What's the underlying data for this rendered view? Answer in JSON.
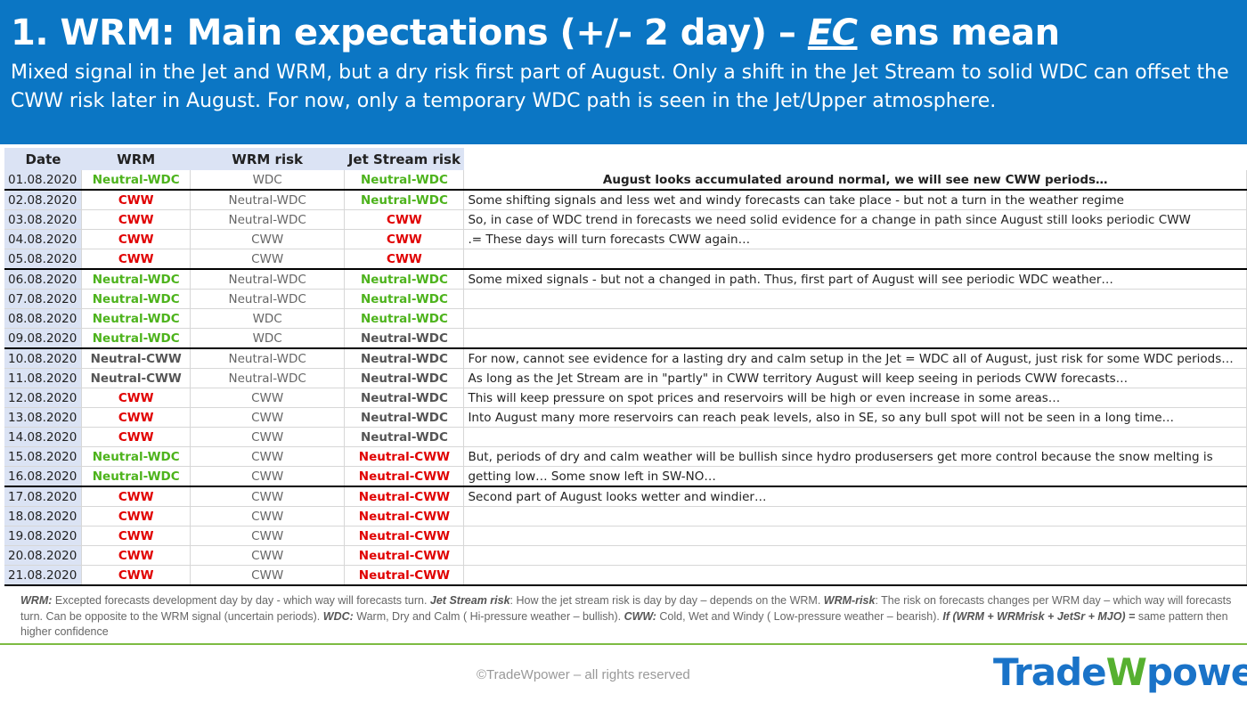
{
  "header": {
    "title_main": "1. WRM: Main expectations (+/- 2 day) – ",
    "title_ec": "EC",
    "title_rest": " ens mean",
    "subtitle": "Mixed signal in the Jet and WRM, but a dry risk first part of August. Only a shift in the Jet Stream to solid WDC can offset the CWW risk later in August. For now, only a temporary WDC path is seen in the Jet/Upper atmosphere."
  },
  "table": {
    "columns": [
      "Date",
      "WRM",
      "WRM risk",
      "Jet Stream risk"
    ],
    "rows": [
      {
        "date": "01.08.2020",
        "wrm": "Neutral-WDC",
        "wrm_c": "green",
        "risk": "WDC",
        "jet": "Neutral-WDC",
        "jet_c": "green",
        "note": "August looks accumulated around normal, we will see new CWW periods…",
        "note_bold": true
      },
      {
        "date": "02.08.2020",
        "wrm": "CWW",
        "wrm_c": "red",
        "risk": "Neutral-WDC",
        "jet": "Neutral-WDC",
        "jet_c": "green",
        "note": "Some shifting signals and less wet and windy forecasts can take place - but not a turn in the weather regime"
      },
      {
        "date": "03.08.2020",
        "wrm": "CWW",
        "wrm_c": "red",
        "risk": "Neutral-WDC",
        "jet": "CWW",
        "jet_c": "red",
        "note": "So, in case of WDC trend in forecasts we need solid evidence for a change in path since August still looks periodic CWW"
      },
      {
        "date": "04.08.2020",
        "wrm": "CWW",
        "wrm_c": "red",
        "risk": "CWW",
        "jet": "CWW",
        "jet_c": "red",
        "note": ".= These days will turn forecasts CWW again…"
      },
      {
        "date": "05.08.2020",
        "wrm": "CWW",
        "wrm_c": "red",
        "risk": "CWW",
        "jet": "CWW",
        "jet_c": "red",
        "note": ""
      },
      {
        "date": "06.08.2020",
        "wrm": "Neutral-WDC",
        "wrm_c": "green",
        "risk": "Neutral-WDC",
        "jet": "Neutral-WDC",
        "jet_c": "green",
        "note": "Some mixed signals - but not a changed in path. Thus, first part of August will see periodic WDC weather…"
      },
      {
        "date": "07.08.2020",
        "wrm": "Neutral-WDC",
        "wrm_c": "green",
        "risk": "Neutral-WDC",
        "jet": "Neutral-WDC",
        "jet_c": "green",
        "note": ""
      },
      {
        "date": "08.08.2020",
        "wrm": "Neutral-WDC",
        "wrm_c": "green",
        "risk": "WDC",
        "jet": "Neutral-WDC",
        "jet_c": "green",
        "note": ""
      },
      {
        "date": "09.08.2020",
        "wrm": "Neutral-WDC",
        "wrm_c": "green",
        "risk": "WDC",
        "jet": "Neutral-WDC",
        "jet_c": "grayb",
        "note": ""
      },
      {
        "date": "10.08.2020",
        "wrm": "Neutral-CWW",
        "wrm_c": "grayb",
        "risk": "Neutral-WDC",
        "jet": "Neutral-WDC",
        "jet_c": "grayb",
        "note": "For now, cannot see evidence for a lasting dry and calm setup in the Jet = WDC all of August, just risk for some WDC periods…"
      },
      {
        "date": "11.08.2020",
        "wrm": "Neutral-CWW",
        "wrm_c": "grayb",
        "risk": "Neutral-WDC",
        "jet": "Neutral-WDC",
        "jet_c": "grayb",
        "note": "As long as the Jet Stream are in \"partly\" in CWW territory August will keep seeing in periods CWW forecasts…"
      },
      {
        "date": "12.08.2020",
        "wrm": "CWW",
        "wrm_c": "red",
        "risk": "CWW",
        "jet": "Neutral-WDC",
        "jet_c": "grayb",
        "note": "This will keep pressure on spot prices and reservoirs will be high or even increase in some areas…"
      },
      {
        "date": "13.08.2020",
        "wrm": "CWW",
        "wrm_c": "red",
        "risk": "CWW",
        "jet": "Neutral-WDC",
        "jet_c": "grayb",
        "note": "Into August many more reservoirs can reach peak levels, also in SE, so any bull spot will not be seen in a long time…"
      },
      {
        "date": "14.08.2020",
        "wrm": "CWW",
        "wrm_c": "red",
        "risk": "CWW",
        "jet": "Neutral-WDC",
        "jet_c": "grayb",
        "note": ""
      },
      {
        "date": "15.08.2020",
        "wrm": "Neutral-WDC",
        "wrm_c": "green",
        "risk": "CWW",
        "jet": "Neutral-CWW",
        "jet_c": "red",
        "note": "But, periods of dry and calm weather will be bullish since hydro produsersers get more control because the snow melting is"
      },
      {
        "date": "16.08.2020",
        "wrm": "Neutral-WDC",
        "wrm_c": "green",
        "risk": "CWW",
        "jet": "Neutral-CWW",
        "jet_c": "red",
        "note": "getting low… Some snow left in SW-NO…"
      },
      {
        "date": "17.08.2020",
        "wrm": "CWW",
        "wrm_c": "red",
        "risk": "CWW",
        "jet": "Neutral-CWW",
        "jet_c": "red",
        "note": "Second part of August looks wetter and windier…"
      },
      {
        "date": "18.08.2020",
        "wrm": "CWW",
        "wrm_c": "red",
        "risk": "CWW",
        "jet": "Neutral-CWW",
        "jet_c": "red",
        "note": ""
      },
      {
        "date": "19.08.2020",
        "wrm": "CWW",
        "wrm_c": "red",
        "risk": "CWW",
        "jet": "Neutral-CWW",
        "jet_c": "red",
        "note": ""
      },
      {
        "date": "20.08.2020",
        "wrm": "CWW",
        "wrm_c": "red",
        "risk": "CWW",
        "jet": "Neutral-CWW",
        "jet_c": "red",
        "note": ""
      },
      {
        "date": "21.08.2020",
        "wrm": "CWW",
        "wrm_c": "red",
        "risk": "CWW",
        "jet": "Neutral-CWW",
        "jet_c": "red",
        "note": ""
      }
    ]
  },
  "legend": {
    "wrm_label": "WRM:",
    "wrm_text": " Excepted forecasts development day by day - which way will forecasts turn.  ",
    "jet_label": "Jet Stream risk",
    "jet_text": ": How the jet stream risk is day by day – depends on the WRM. ",
    "wrmrisk_label": "WRM-risk",
    "wrmrisk_text": ": The risk on forecasts changes per WRM day – which way will forecasts turn. Can be opposite to the WRM signal (uncertain periods). ",
    "wdc_label": "WDC:",
    "wdc_text": " Warm, Dry and Calm ( Hi-pressure weather – bullish). ",
    "cww_label": "CWW:",
    "cww_text": " Cold, Wet and Windy ( Low-pressure weather – bearish). ",
    "if_label": "If (WRM + WRMrisk + JetSr + MJO) =",
    "if_text": " same pattern then higher confidence"
  },
  "footer": {
    "copyright": "©TradeWpower – all rights reserved",
    "logo_a": "Trade",
    "logo_w": "W",
    "logo_b": "power"
  }
}
